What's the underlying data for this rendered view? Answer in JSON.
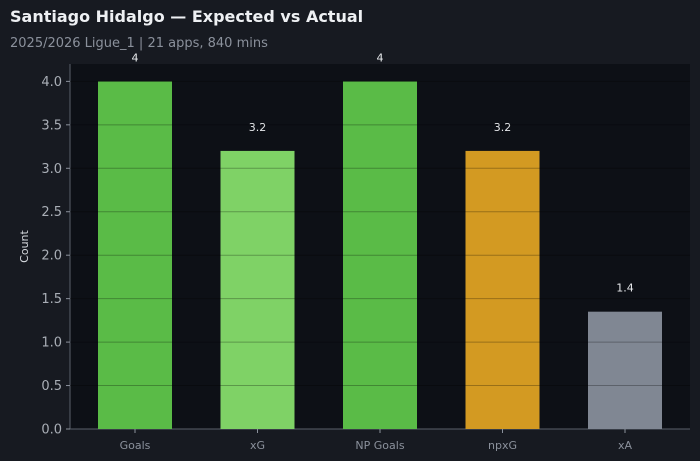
{
  "header": {
    "title": "Santiago Hidalgo — Expected vs Actual",
    "subtitle": "2025/2026 Ligue_1 | 21 apps, 840 mins"
  },
  "colors": {
    "background": "#171a21",
    "plot_background": "#0d1016",
    "goals": "#5abb47",
    "xg": "#7fd266",
    "np_goals": "#5abb47",
    "npxg": "#d39a22",
    "xa": "#808793"
  },
  "chart_data": {
    "type": "bar",
    "categories": [
      "Goals",
      "xG",
      "NP Goals",
      "npxG",
      "xA"
    ],
    "values": [
      4,
      3.2,
      4,
      3.2,
      1.35
    ],
    "data_labels": [
      "4",
      "3.2",
      "4",
      "3.2",
      "1.4"
    ],
    "ylabel": "Count",
    "ylim": [
      0,
      4.2
    ],
    "yticks": [
      "0.0",
      "0.5",
      "1.0",
      "1.5",
      "2.0",
      "2.5",
      "3.0",
      "3.5",
      "4.0"
    ],
    "grid": true
  }
}
